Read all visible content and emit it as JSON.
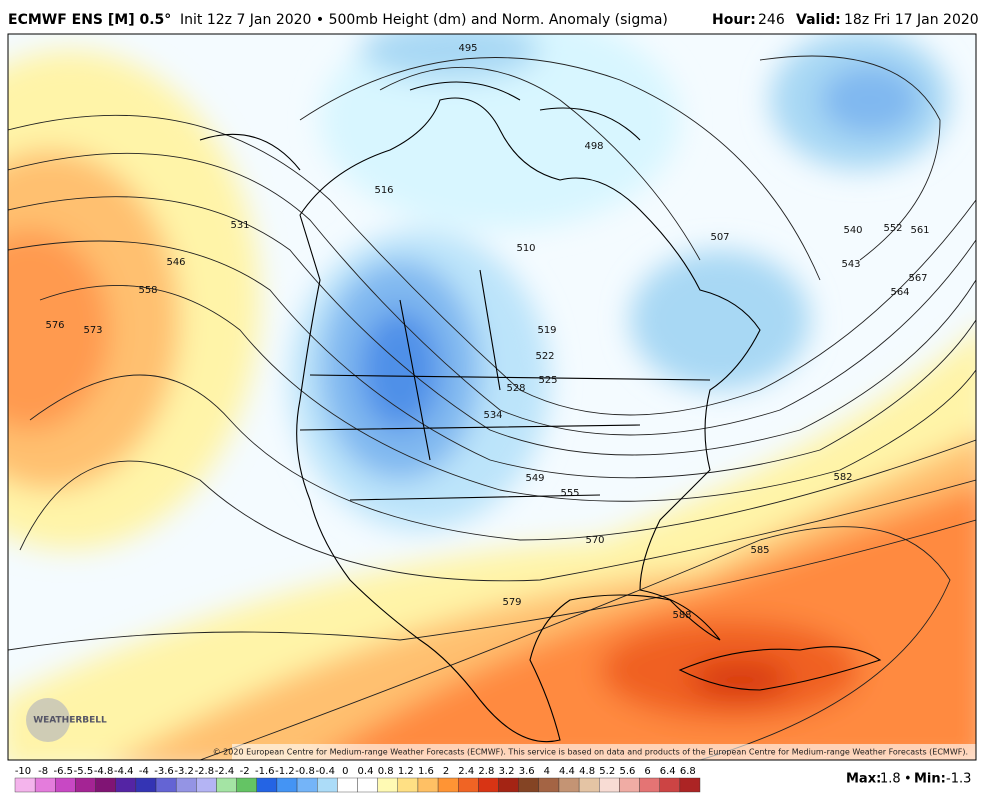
{
  "header": {
    "model": "ECMWF ENS [M] 0.5°",
    "description": "Init 12z 7 Jan 2020 • 500mb Height (dm) and Norm. Anomaly (sigma)",
    "hour_label": "Hour:",
    "hour": "246",
    "valid_label": "Valid:",
    "valid": "18z Fri 17 Jan 2020"
  },
  "map": {
    "contour_labels": [
      "495",
      "498",
      "516",
      "531",
      "546",
      "558",
      "576",
      "573",
      "510",
      "507",
      "519",
      "522",
      "525",
      "528",
      "534",
      "549",
      "555",
      "570",
      "579",
      "582",
      "585",
      "588",
      "540",
      "543",
      "552",
      "561",
      "564",
      "567"
    ],
    "copyright": "© 2020 European Centre for Medium-range Weather Forecasts (ECMWF). This service is based on data and products of the European Centre for Medium-range Weather Forecasts (ECMWF).",
    "logo": "WEATHERBELL"
  },
  "legend": {
    "ticks": [
      -10,
      -8,
      -6.5,
      -5.5,
      -4.8,
      -4.4,
      -4,
      -3.6,
      -3.2,
      -2.8,
      -2.4,
      -2,
      -1.6,
      -1.2,
      -0.8,
      -0.4,
      0,
      0.4,
      0.8,
      1.2,
      1.6,
      2,
      2.4,
      2.8,
      3.2,
      3.6,
      4,
      4.4,
      4.8,
      5.2,
      5.6,
      6,
      6.4,
      6.8
    ],
    "colors": [
      "#f4b4ec",
      "#e47cdc",
      "#c848c4",
      "#a42494",
      "#801474",
      "#5424a4",
      "#3434b4",
      "#6464d4",
      "#9494e4",
      "#b4b4f4",
      "#a4e4a4",
      "#64c464",
      "#2464e4",
      "#4494f4",
      "#74b4f8",
      "#acdcf8",
      "#ffffff",
      "#ffffff",
      "#fffab4",
      "#ffe084",
      "#ffc064",
      "#ff9434",
      "#f06424",
      "#d83414",
      "#a42414",
      "#844424",
      "#a46444",
      "#c49474",
      "#e4c4a4",
      "#f8dcd4",
      "#f0aca4",
      "#e47474",
      "#cc4444",
      "#ac2424"
    ]
  },
  "stats": {
    "max_label": "Max:",
    "max": "1.8",
    "min_label": "Min:",
    "min": "-1.3"
  }
}
